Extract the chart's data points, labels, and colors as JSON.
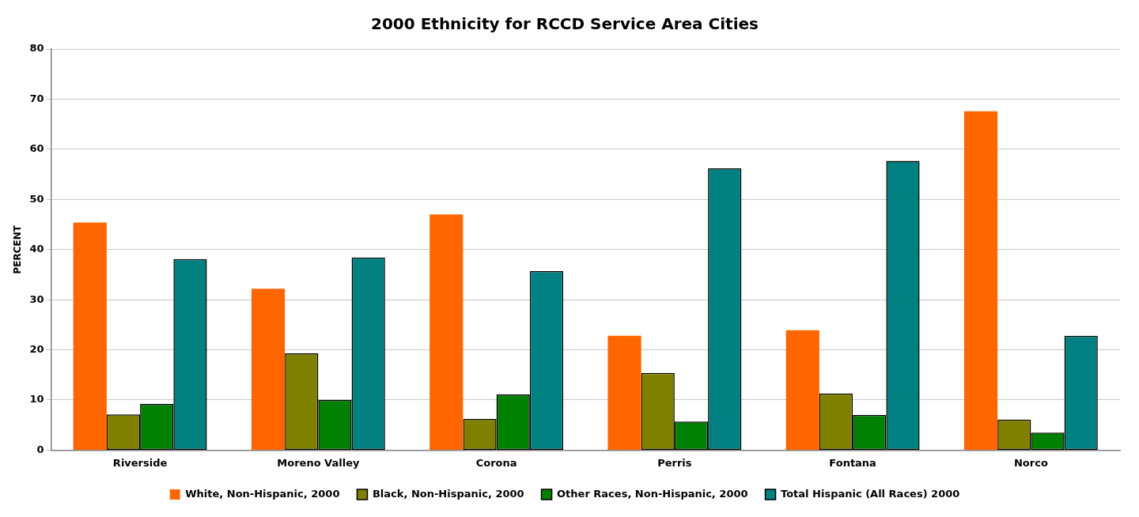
{
  "chart_data": {
    "type": "bar",
    "title": "2000 Ethnicity for RCCD Service Area Cities",
    "ylabel": "PERCENT",
    "categories": [
      "Riverside",
      "Moreno Valley",
      "Corona",
      "Perris",
      "Fontana",
      "Norco"
    ],
    "series": [
      {
        "name": "White, Non-Hispanic, 2000",
        "color": "#ff6600",
        "values": [
          45.4,
          32.2,
          47.0,
          22.8,
          23.9,
          67.6
        ]
      },
      {
        "name": "Black, Non-Hispanic, 2000",
        "color": "#808000",
        "values": [
          7.1,
          19.3,
          6.2,
          15.4,
          11.3,
          6.1
        ]
      },
      {
        "name": "Other Races, Non-Hispanic, 2000",
        "color": "#008000",
        "values": [
          9.2,
          10.0,
          11.1,
          5.7,
          7.0,
          3.5
        ]
      },
      {
        "name": "Total Hispanic (All Races) 2000",
        "color": "#008080",
        "values": [
          38.1,
          38.4,
          35.7,
          56.2,
          57.7,
          22.8
        ]
      }
    ],
    "ylim": [
      0,
      80
    ],
    "yticks": [
      0,
      10,
      20,
      30,
      40,
      50,
      60,
      70,
      80
    ],
    "grid": "y",
    "legend": "bottom"
  }
}
